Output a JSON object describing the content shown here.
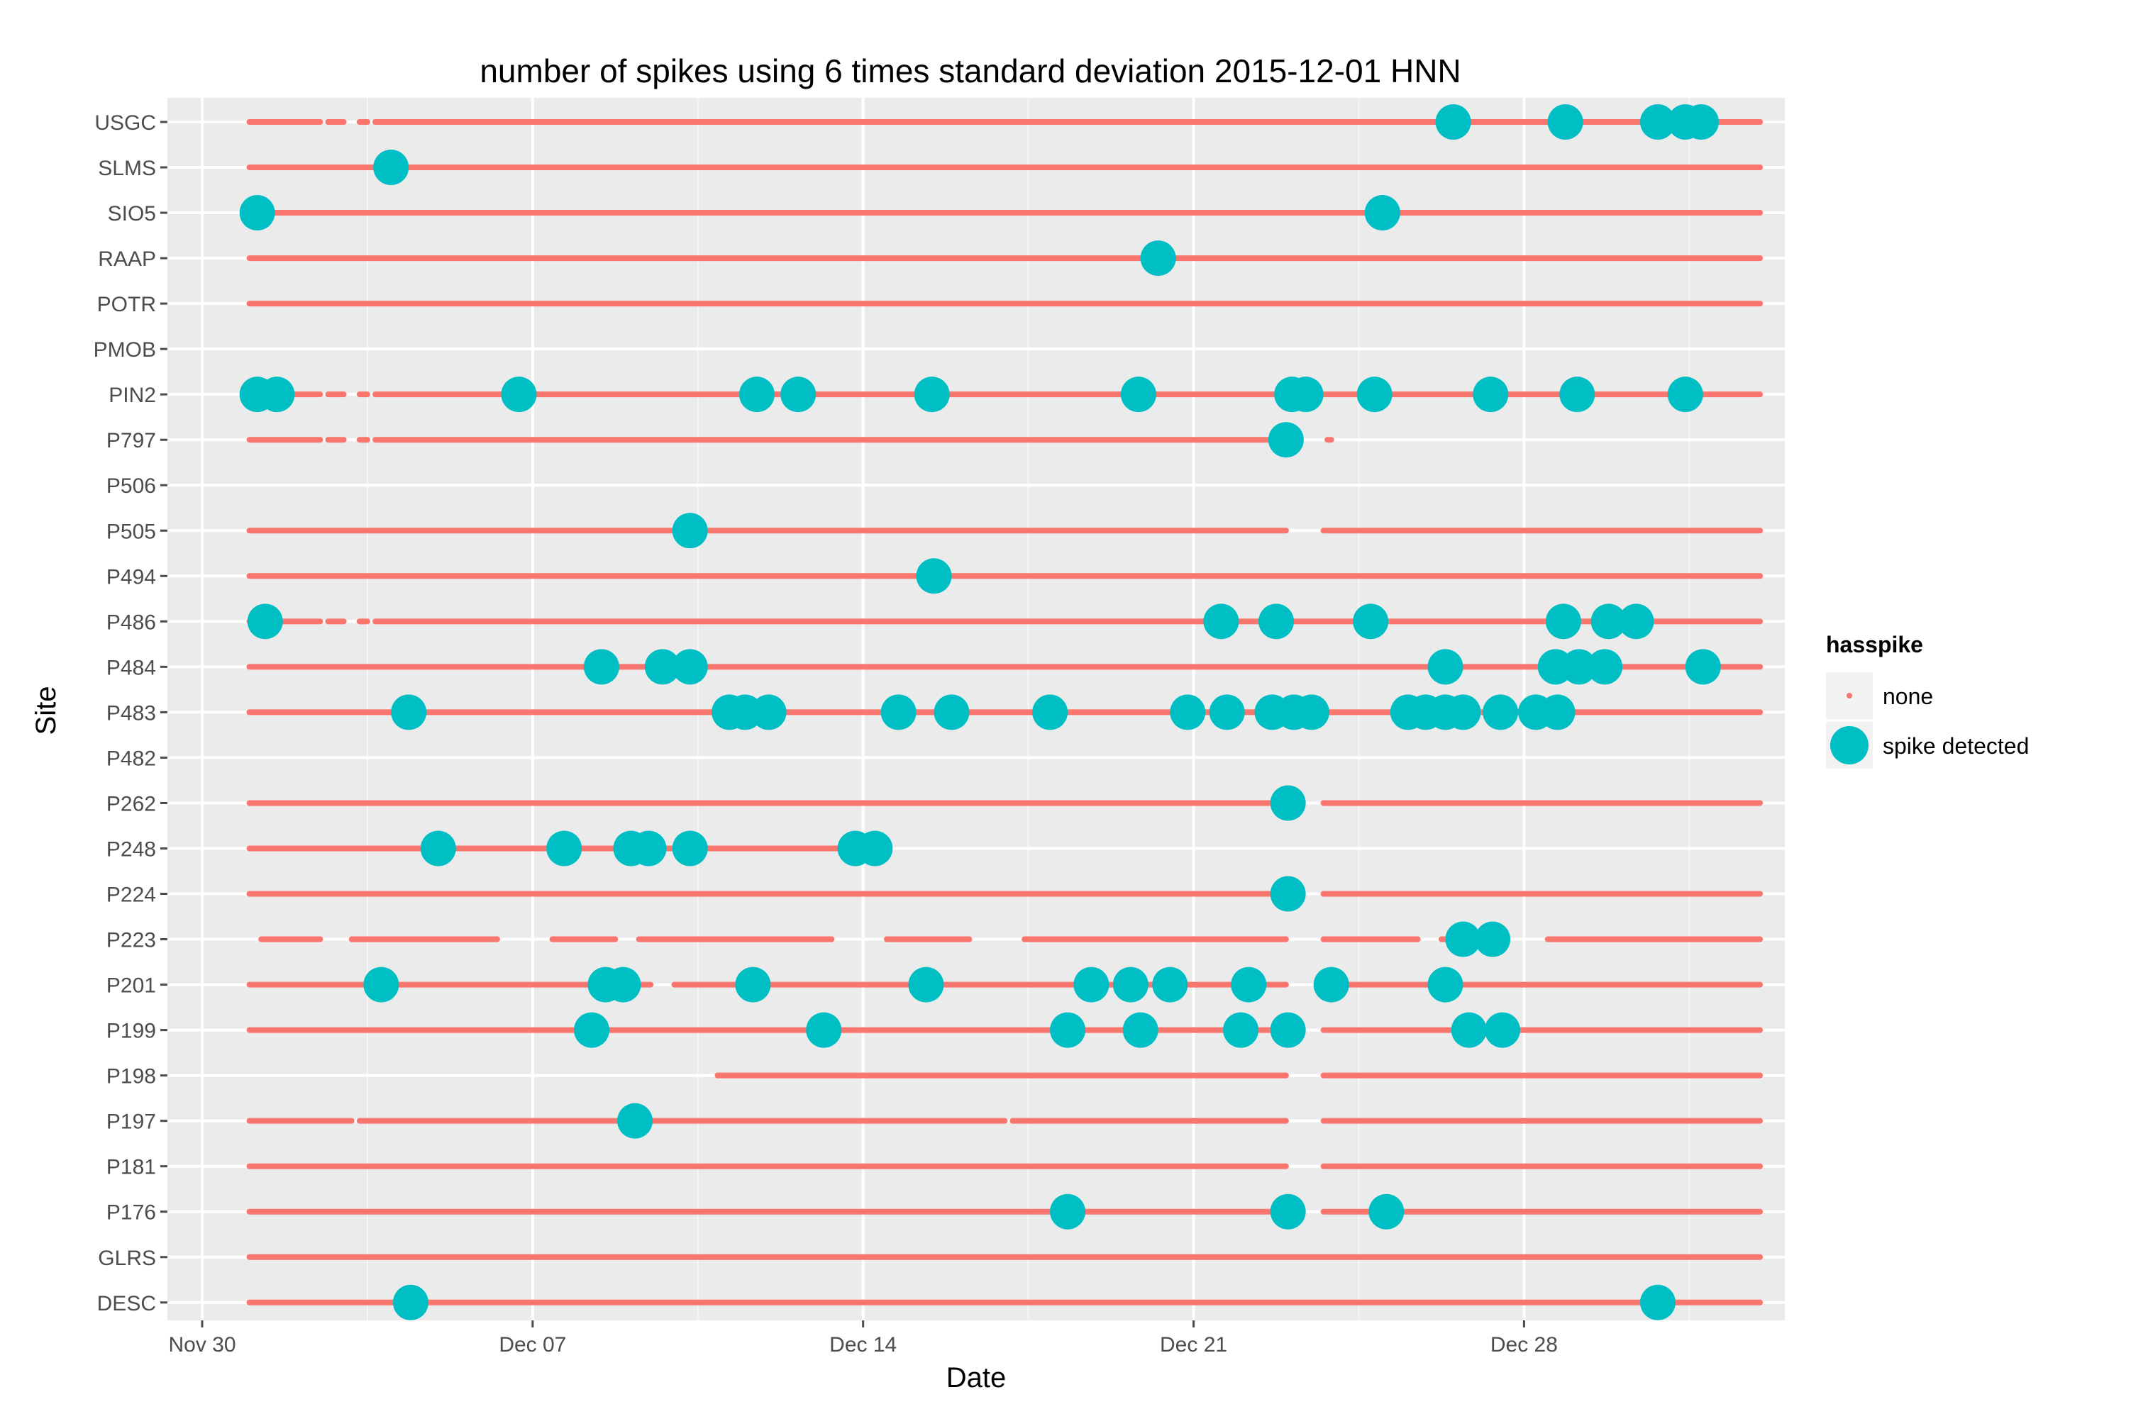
{
  "chart_data": {
    "type": "scatter",
    "title": "number of spikes using  6 times standard deviation 2015-12-01 HNN",
    "xlabel": "Date",
    "ylabel": "Site",
    "xlim": [
      "2015-11-30",
      "2016-01-04"
    ],
    "x_ticks": [
      "Nov 30",
      "Dec 07",
      "Dec 14",
      "Dec 21",
      "Dec 28"
    ],
    "x_tick_dates": [
      "2015-11-30",
      "2015-12-07",
      "2015-12-14",
      "2015-12-21",
      "2015-12-28"
    ],
    "grid": true,
    "legend": {
      "title": "hasspike",
      "position": "right",
      "items": [
        "none",
        "spike detected"
      ]
    },
    "colors": {
      "none": "#F8766D",
      "spike detected": "#00BFC4",
      "panel": "#EBEBEB",
      "grid": "#FFFFFF"
    },
    "sites": [
      "USGC",
      "SLMS",
      "SIO5",
      "RAAP",
      "POTR",
      "PMOB",
      "PIN2",
      "P797",
      "P506",
      "P505",
      "P494",
      "P486",
      "P484",
      "P483",
      "P482",
      "P262",
      "P248",
      "P224",
      "P223",
      "P201",
      "P199",
      "P198",
      "P197",
      "P181",
      "P176",
      "GLRS",
      "DESC"
    ],
    "series": [
      {
        "site": "USGC",
        "none": [
          [
            "2015-12-01 00:00",
            "2015-12-02 12:00"
          ],
          [
            "2015-12-02 16:00",
            "2015-12-03 00:00"
          ],
          [
            "2015-12-03 08:00",
            "2015-12-03 12:00"
          ],
          [
            "2015-12-03 16:00",
            "2016-01-02 00:00"
          ]
        ],
        "spike detected": [
          "2015-12-26 12:00",
          "2015-12-28 21:00",
          "2015-12-30 20:00",
          "2015-12-31 10:00",
          "2015-12-31 18:00"
        ]
      },
      {
        "site": "SLMS",
        "none": [
          [
            "2015-12-01 00:00",
            "2016-01-02 00:00"
          ]
        ],
        "spike detected": [
          "2015-12-04 00:00"
        ]
      },
      {
        "site": "SIO5",
        "none": [
          [
            "2015-12-01 00:00",
            "2016-01-02 00:00"
          ]
        ],
        "spike detected": [
          "2015-12-01 04:00",
          "2015-12-25 00:00"
        ]
      },
      {
        "site": "RAAP",
        "none": [
          [
            "2015-12-01 00:00",
            "2016-01-02 00:00"
          ]
        ],
        "spike detected": [
          "2015-12-20 06:00"
        ]
      },
      {
        "site": "POTR",
        "none": [
          [
            "2015-12-01 00:00",
            "2016-01-02 00:00"
          ]
        ],
        "spike detected": []
      },
      {
        "site": "PMOB",
        "none": [],
        "spike detected": []
      },
      {
        "site": "PIN2",
        "none": [
          [
            "2015-12-01 00:00",
            "2015-12-02 12:00"
          ],
          [
            "2015-12-02 16:00",
            "2015-12-03 00:00"
          ],
          [
            "2015-12-03 08:00",
            "2015-12-03 12:00"
          ],
          [
            "2015-12-03 16:00",
            "2016-01-02 00:00"
          ]
        ],
        "spike detected": [
          "2015-12-01 04:00",
          "2015-12-01 14:00",
          "2015-12-06 17:00",
          "2015-12-11 18:00",
          "2015-12-12 15:00",
          "2015-12-15 11:00",
          "2015-12-19 20:00",
          "2015-12-23 02:00",
          "2015-12-23 09:00",
          "2015-12-24 20:00",
          "2015-12-27 07:00",
          "2015-12-29 03:00",
          "2015-12-31 10:00"
        ]
      },
      {
        "site": "P797",
        "none": [
          [
            "2015-12-01 00:00",
            "2015-12-02 12:00"
          ],
          [
            "2015-12-02 16:00",
            "2015-12-03 00:00"
          ],
          [
            "2015-12-03 08:00",
            "2015-12-03 12:00"
          ],
          [
            "2015-12-03 16:00",
            "2015-12-23 04:00"
          ],
          [
            "2015-12-23 20:00",
            "2015-12-23 22:00"
          ]
        ],
        "spike detected": [
          "2015-12-22 23:00"
        ]
      },
      {
        "site": "P506",
        "none": [],
        "spike detected": []
      },
      {
        "site": "P505",
        "none": [
          [
            "2015-12-01 00:00",
            "2015-12-22 23:00"
          ],
          [
            "2015-12-23 18:00",
            "2016-01-02 00:00"
          ]
        ],
        "spike detected": [
          "2015-12-10 08:00"
        ]
      },
      {
        "site": "P494",
        "none": [
          [
            "2015-12-01 00:00",
            "2016-01-02 00:00"
          ]
        ],
        "spike detected": [
          "2015-12-15 12:00"
        ]
      },
      {
        "site": "P486",
        "none": [
          [
            "2015-12-01 00:00",
            "2015-12-02 12:00"
          ],
          [
            "2015-12-02 16:00",
            "2015-12-03 00:00"
          ],
          [
            "2015-12-03 08:00",
            "2015-12-03 12:00"
          ],
          [
            "2015-12-03 16:00",
            "2016-01-02 00:00"
          ]
        ],
        "spike detected": [
          "2015-12-01 08:00",
          "2015-12-21 14:00",
          "2015-12-22 18:00",
          "2015-12-24 18:00",
          "2015-12-28 20:00",
          "2015-12-29 19:00",
          "2015-12-30 09:00"
        ]
      },
      {
        "site": "P484",
        "none": [
          [
            "2015-12-01 00:00",
            "2016-01-02 00:00"
          ]
        ],
        "spike detected": [
          "2015-12-08 11:00",
          "2015-12-09 18:00",
          "2015-12-10 08:00",
          "2015-12-26 08:00",
          "2015-12-28 16:00",
          "2015-12-29 04:00",
          "2015-12-29 17:00",
          "2015-12-31 19:00"
        ]
      },
      {
        "site": "P483",
        "none": [
          [
            "2015-12-01 00:00",
            "2016-01-02 00:00"
          ]
        ],
        "spike detected": [
          "2015-12-04 09:00",
          "2015-12-11 04:00",
          "2015-12-11 12:00",
          "2015-12-12 00:00",
          "2015-12-14 18:00",
          "2015-12-15 21:00",
          "2015-12-17 23:00",
          "2015-12-20 21:00",
          "2015-12-21 17:00",
          "2015-12-22 16:00",
          "2015-12-23 03:00",
          "2015-12-23 12:00",
          "2015-12-25 13:00",
          "2015-12-25 22:00",
          "2015-12-26 08:00",
          "2015-12-26 17:00",
          "2015-12-27 12:00",
          "2015-12-28 06:00",
          "2015-12-28 17:00"
        ]
      },
      {
        "site": "P482",
        "none": [],
        "spike detected": []
      },
      {
        "site": "P262",
        "none": [
          [
            "2015-12-01 00:00",
            "2015-12-22 23:00"
          ],
          [
            "2015-12-23 18:00",
            "2016-01-02 00:00"
          ]
        ],
        "spike detected": [
          "2015-12-23 00:00"
        ]
      },
      {
        "site": "P248",
        "none": [
          [
            "2015-12-01 00:00",
            "2015-12-14 06:00"
          ]
        ],
        "spike detected": [
          "2015-12-05 00:00",
          "2015-12-07 16:00",
          "2015-12-09 02:00",
          "2015-12-09 11:00",
          "2015-12-10 08:00",
          "2015-12-13 20:00",
          "2015-12-14 06:00"
        ]
      },
      {
        "site": "P224",
        "none": [
          [
            "2015-12-01 00:00",
            "2015-12-22 23:00"
          ],
          [
            "2015-12-23 18:00",
            "2016-01-02 00:00"
          ]
        ],
        "spike detected": [
          "2015-12-23 00:00"
        ]
      },
      {
        "site": "P223",
        "none": [
          [
            "2015-12-01 06:00",
            "2015-12-02 12:00"
          ],
          [
            "2015-12-03 04:00",
            "2015-12-06 06:00"
          ],
          [
            "2015-12-07 10:00",
            "2015-12-08 18:00"
          ],
          [
            "2015-12-09 06:00",
            "2015-12-13 08:00"
          ],
          [
            "2015-12-14 12:00",
            "2015-12-16 06:00"
          ],
          [
            "2015-12-17 10:00",
            "2015-12-22 23:00"
          ],
          [
            "2015-12-23 18:00",
            "2015-12-25 18:00"
          ],
          [
            "2015-12-26 06:00",
            "2015-12-27 06:00"
          ],
          [
            "2015-12-28 12:00",
            "2016-01-02 00:00"
          ]
        ],
        "spike detected": [
          "2015-12-26 17:00",
          "2015-12-27 08:00"
        ]
      },
      {
        "site": "P201",
        "none": [
          [
            "2015-12-01 00:00",
            "2015-12-09 12:00"
          ],
          [
            "2015-12-10 00:00",
            "2015-12-22 23:00"
          ],
          [
            "2015-12-23 18:00",
            "2016-01-02 00:00"
          ]
        ],
        "spike detected": [
          "2015-12-03 19:00",
          "2015-12-08 13:00",
          "2015-12-08 22:00",
          "2015-12-11 16:00",
          "2015-12-15 08:00",
          "2015-12-18 20:00",
          "2015-12-19 16:00",
          "2015-12-20 12:00",
          "2015-12-22 04:00",
          "2015-12-23 22:00",
          "2015-12-26 08:00"
        ]
      },
      {
        "site": "P199",
        "none": [
          [
            "2015-12-01 00:00",
            "2015-12-22 23:00"
          ],
          [
            "2015-12-23 18:00",
            "2016-01-02 00:00"
          ]
        ],
        "spike detected": [
          "2015-12-08 06:00",
          "2015-12-13 04:00",
          "2015-12-18 08:00",
          "2015-12-19 21:00",
          "2015-12-22 00:00",
          "2015-12-23 00:00",
          "2015-12-26 20:00",
          "2015-12-27 13:00"
        ]
      },
      {
        "site": "P198",
        "none": [
          [
            "2015-12-10 22:00",
            "2015-12-22 23:00"
          ],
          [
            "2015-12-23 18:00",
            "2016-01-02 00:00"
          ]
        ],
        "spike detected": []
      },
      {
        "site": "P197",
        "none": [
          [
            "2015-12-01 00:00",
            "2015-12-03 04:00"
          ],
          [
            "2015-12-03 08:00",
            "2015-12-17 00:00"
          ],
          [
            "2015-12-17 04:00",
            "2015-12-22 23:00"
          ],
          [
            "2015-12-23 18:00",
            "2016-01-02 00:00"
          ]
        ],
        "spike detected": [
          "2015-12-09 04:00"
        ]
      },
      {
        "site": "P181",
        "none": [
          [
            "2015-12-01 00:00",
            "2015-12-22 23:00"
          ],
          [
            "2015-12-23 18:00",
            "2016-01-02 00:00"
          ]
        ],
        "spike detected": []
      },
      {
        "site": "P176",
        "none": [
          [
            "2015-12-01 00:00",
            "2015-12-22 23:00"
          ],
          [
            "2015-12-23 18:00",
            "2016-01-02 00:00"
          ]
        ],
        "spike detected": [
          "2015-12-18 08:00",
          "2015-12-23 00:00",
          "2015-12-25 02:00"
        ]
      },
      {
        "site": "GLRS",
        "none": [
          [
            "2015-12-01 00:00",
            "2016-01-02 00:00"
          ]
        ],
        "spike detected": []
      },
      {
        "site": "DESC",
        "none": [
          [
            "2015-12-01 00:00",
            "2016-01-02 00:00"
          ]
        ],
        "spike detected": [
          "2015-12-04 10:00",
          "2015-12-30 20:00"
        ]
      }
    ]
  }
}
